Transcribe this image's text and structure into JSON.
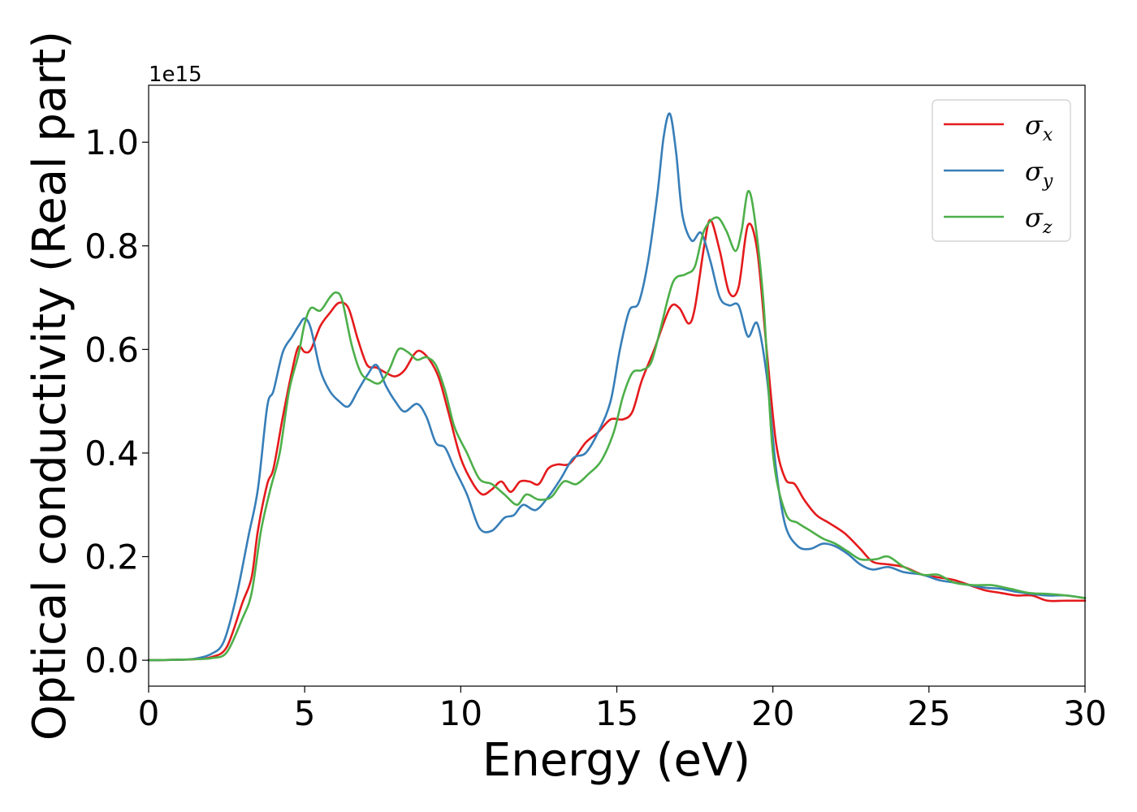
{
  "chart_data": {
    "type": "line",
    "title": "",
    "xlabel": "Energy (eV)",
    "ylabel": "Optical conductivity (Real part)",
    "y_offset_label": "1e15",
    "xlim": [
      0,
      30
    ],
    "ylim": [
      -0.05,
      1.11
    ],
    "xticks": [
      0,
      5,
      10,
      15,
      20,
      25,
      30
    ],
    "xtick_labels": [
      "0",
      "5",
      "10",
      "15",
      "20",
      "25",
      "30"
    ],
    "yticks": [
      0.0,
      0.2,
      0.4,
      0.6,
      0.8,
      1.0
    ],
    "ytick_labels": [
      "0.0",
      "0.2",
      "0.4",
      "0.6",
      "0.8",
      "1.0"
    ],
    "grid": false,
    "legend_position": "top-right",
    "series": [
      {
        "name": "σx",
        "name_base": "σ",
        "name_sub": "x",
        "color": "#e41a1c",
        "points": [
          [
            0,
            0
          ],
          [
            1,
            0.001
          ],
          [
            1.5,
            0.002
          ],
          [
            2,
            0.006
          ],
          [
            2.5,
            0.025
          ],
          [
            3,
            0.11
          ],
          [
            3.3,
            0.16
          ],
          [
            3.5,
            0.25
          ],
          [
            3.8,
            0.34
          ],
          [
            4.0,
            0.37
          ],
          [
            4.3,
            0.47
          ],
          [
            4.6,
            0.56
          ],
          [
            4.8,
            0.605
          ],
          [
            5.0,
            0.595
          ],
          [
            5.2,
            0.6
          ],
          [
            5.5,
            0.645
          ],
          [
            5.8,
            0.67
          ],
          [
            6.1,
            0.69
          ],
          [
            6.4,
            0.68
          ],
          [
            6.7,
            0.62
          ],
          [
            7.0,
            0.57
          ],
          [
            7.3,
            0.565
          ],
          [
            7.6,
            0.555
          ],
          [
            7.9,
            0.548
          ],
          [
            8.2,
            0.56
          ],
          [
            8.5,
            0.59
          ],
          [
            8.7,
            0.597
          ],
          [
            9.0,
            0.58
          ],
          [
            9.3,
            0.545
          ],
          [
            9.6,
            0.48
          ],
          [
            10.0,
            0.39
          ],
          [
            10.4,
            0.34
          ],
          [
            10.7,
            0.32
          ],
          [
            11.0,
            0.33
          ],
          [
            11.3,
            0.345
          ],
          [
            11.6,
            0.325
          ],
          [
            11.9,
            0.345
          ],
          [
            12.2,
            0.345
          ],
          [
            12.5,
            0.34
          ],
          [
            12.8,
            0.37
          ],
          [
            13.1,
            0.378
          ],
          [
            13.5,
            0.38
          ],
          [
            14.0,
            0.42
          ],
          [
            14.4,
            0.44
          ],
          [
            14.8,
            0.465
          ],
          [
            15.2,
            0.465
          ],
          [
            15.5,
            0.48
          ],
          [
            15.8,
            0.54
          ],
          [
            16.2,
            0.6
          ],
          [
            16.7,
            0.68
          ],
          [
            17.0,
            0.68
          ],
          [
            17.3,
            0.65
          ],
          [
            17.5,
            0.68
          ],
          [
            17.8,
            0.8
          ],
          [
            18.0,
            0.85
          ],
          [
            18.3,
            0.79
          ],
          [
            18.6,
            0.71
          ],
          [
            18.9,
            0.72
          ],
          [
            19.2,
            0.84
          ],
          [
            19.5,
            0.79
          ],
          [
            19.8,
            0.6
          ],
          [
            20.1,
            0.42
          ],
          [
            20.4,
            0.35
          ],
          [
            20.7,
            0.34
          ],
          [
            21.0,
            0.31
          ],
          [
            21.4,
            0.28
          ],
          [
            21.8,
            0.265
          ],
          [
            22.3,
            0.245
          ],
          [
            22.8,
            0.215
          ],
          [
            23.2,
            0.19
          ],
          [
            23.7,
            0.185
          ],
          [
            24.2,
            0.18
          ],
          [
            24.8,
            0.165
          ],
          [
            25.3,
            0.16
          ],
          [
            25.8,
            0.155
          ],
          [
            26.3,
            0.145
          ],
          [
            26.8,
            0.135
          ],
          [
            27.3,
            0.13
          ],
          [
            27.8,
            0.125
          ],
          [
            28.3,
            0.125
          ],
          [
            28.8,
            0.115
          ],
          [
            29.4,
            0.115
          ],
          [
            30,
            0.115
          ]
        ]
      },
      {
        "name": "σy",
        "name_base": "σ",
        "name_sub": "y",
        "color": "#377eb8",
        "points": [
          [
            0,
            0
          ],
          [
            1,
            0.001
          ],
          [
            1.5,
            0.003
          ],
          [
            2,
            0.012
          ],
          [
            2.4,
            0.035
          ],
          [
            2.8,
            0.12
          ],
          [
            3.2,
            0.24
          ],
          [
            3.5,
            0.33
          ],
          [
            3.8,
            0.49
          ],
          [
            4.0,
            0.52
          ],
          [
            4.3,
            0.595
          ],
          [
            4.6,
            0.625
          ],
          [
            4.8,
            0.645
          ],
          [
            5.0,
            0.66
          ],
          [
            5.2,
            0.64
          ],
          [
            5.5,
            0.56
          ],
          [
            5.8,
            0.52
          ],
          [
            6.1,
            0.5
          ],
          [
            6.4,
            0.49
          ],
          [
            6.7,
            0.52
          ],
          [
            7.0,
            0.55
          ],
          [
            7.3,
            0.57
          ],
          [
            7.6,
            0.53
          ],
          [
            7.9,
            0.5
          ],
          [
            8.2,
            0.48
          ],
          [
            8.6,
            0.495
          ],
          [
            8.9,
            0.47
          ],
          [
            9.2,
            0.42
          ],
          [
            9.5,
            0.41
          ],
          [
            9.8,
            0.37
          ],
          [
            10.2,
            0.32
          ],
          [
            10.6,
            0.255
          ],
          [
            11.0,
            0.25
          ],
          [
            11.4,
            0.275
          ],
          [
            11.7,
            0.28
          ],
          [
            12.0,
            0.3
          ],
          [
            12.4,
            0.29
          ],
          [
            12.8,
            0.315
          ],
          [
            13.2,
            0.35
          ],
          [
            13.6,
            0.39
          ],
          [
            14.0,
            0.4
          ],
          [
            14.4,
            0.44
          ],
          [
            14.8,
            0.5
          ],
          [
            15.1,
            0.6
          ],
          [
            15.4,
            0.675
          ],
          [
            15.7,
            0.69
          ],
          [
            16.0,
            0.77
          ],
          [
            16.3,
            0.9
          ],
          [
            16.5,
            1.01
          ],
          [
            16.7,
            1.055
          ],
          [
            16.9,
            0.98
          ],
          [
            17.1,
            0.86
          ],
          [
            17.4,
            0.81
          ],
          [
            17.7,
            0.825
          ],
          [
            18.0,
            0.77
          ],
          [
            18.3,
            0.7
          ],
          [
            18.6,
            0.685
          ],
          [
            18.9,
            0.685
          ],
          [
            19.2,
            0.625
          ],
          [
            19.5,
            0.65
          ],
          [
            19.8,
            0.55
          ],
          [
            20.1,
            0.37
          ],
          [
            20.4,
            0.26
          ],
          [
            20.8,
            0.22
          ],
          [
            21.2,
            0.215
          ],
          [
            21.6,
            0.225
          ],
          [
            22.0,
            0.22
          ],
          [
            22.4,
            0.205
          ],
          [
            22.8,
            0.185
          ],
          [
            23.2,
            0.175
          ],
          [
            23.7,
            0.18
          ],
          [
            24.2,
            0.17
          ],
          [
            24.8,
            0.165
          ],
          [
            25.3,
            0.155
          ],
          [
            25.8,
            0.15
          ],
          [
            26.3,
            0.145
          ],
          [
            26.8,
            0.14
          ],
          [
            27.3,
            0.138
          ],
          [
            27.8,
            0.132
          ],
          [
            28.3,
            0.128
          ],
          [
            28.8,
            0.125
          ],
          [
            29.4,
            0.125
          ],
          [
            30,
            0.12
          ]
        ]
      },
      {
        "name": "σz",
        "name_base": "σ",
        "name_sub": "z",
        "color": "#4daf4a",
        "points": [
          [
            0,
            0
          ],
          [
            1,
            0.001
          ],
          [
            1.5,
            0.002
          ],
          [
            2,
            0.004
          ],
          [
            2.5,
            0.015
          ],
          [
            3,
            0.08
          ],
          [
            3.3,
            0.13
          ],
          [
            3.6,
            0.25
          ],
          [
            3.9,
            0.33
          ],
          [
            4.2,
            0.4
          ],
          [
            4.5,
            0.52
          ],
          [
            4.8,
            0.59
          ],
          [
            5.0,
            0.65
          ],
          [
            5.2,
            0.68
          ],
          [
            5.5,
            0.675
          ],
          [
            5.8,
            0.7
          ],
          [
            6.0,
            0.71
          ],
          [
            6.2,
            0.695
          ],
          [
            6.5,
            0.61
          ],
          [
            6.8,
            0.555
          ],
          [
            7.1,
            0.54
          ],
          [
            7.4,
            0.535
          ],
          [
            7.7,
            0.56
          ],
          [
            8.0,
            0.6
          ],
          [
            8.3,
            0.595
          ],
          [
            8.6,
            0.58
          ],
          [
            8.9,
            0.585
          ],
          [
            9.2,
            0.57
          ],
          [
            9.5,
            0.52
          ],
          [
            9.8,
            0.45
          ],
          [
            10.2,
            0.4
          ],
          [
            10.6,
            0.35
          ],
          [
            11.0,
            0.34
          ],
          [
            11.4,
            0.32
          ],
          [
            11.8,
            0.3
          ],
          [
            12.1,
            0.32
          ],
          [
            12.5,
            0.31
          ],
          [
            12.9,
            0.315
          ],
          [
            13.3,
            0.345
          ],
          [
            13.7,
            0.34
          ],
          [
            14.1,
            0.36
          ],
          [
            14.5,
            0.385
          ],
          [
            14.9,
            0.44
          ],
          [
            15.2,
            0.51
          ],
          [
            15.5,
            0.555
          ],
          [
            15.8,
            0.56
          ],
          [
            16.1,
            0.575
          ],
          [
            16.4,
            0.64
          ],
          [
            16.8,
            0.73
          ],
          [
            17.2,
            0.745
          ],
          [
            17.5,
            0.76
          ],
          [
            17.8,
            0.83
          ],
          [
            18.2,
            0.855
          ],
          [
            18.5,
            0.83
          ],
          [
            18.8,
            0.79
          ],
          [
            19.0,
            0.83
          ],
          [
            19.2,
            0.905
          ],
          [
            19.4,
            0.86
          ],
          [
            19.7,
            0.69
          ],
          [
            20.0,
            0.4
          ],
          [
            20.4,
            0.285
          ],
          [
            20.8,
            0.265
          ],
          [
            21.2,
            0.25
          ],
          [
            21.6,
            0.235
          ],
          [
            22.0,
            0.225
          ],
          [
            22.4,
            0.21
          ],
          [
            22.8,
            0.195
          ],
          [
            23.3,
            0.195
          ],
          [
            23.7,
            0.2
          ],
          [
            24.2,
            0.18
          ],
          [
            24.8,
            0.165
          ],
          [
            25.3,
            0.165
          ],
          [
            25.8,
            0.15
          ],
          [
            26.4,
            0.145
          ],
          [
            27.0,
            0.145
          ],
          [
            27.6,
            0.138
          ],
          [
            28.2,
            0.13
          ],
          [
            28.8,
            0.128
          ],
          [
            29.4,
            0.125
          ],
          [
            30,
            0.12
          ]
        ]
      }
    ]
  }
}
